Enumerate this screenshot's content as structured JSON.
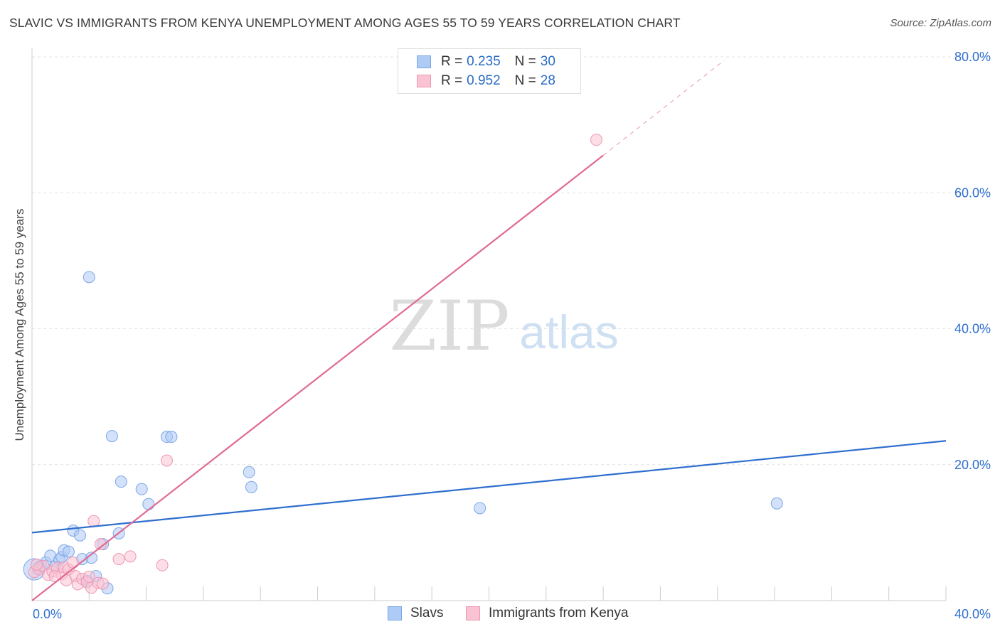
{
  "title": "SLAVIC VS IMMIGRANTS FROM KENYA UNEMPLOYMENT AMONG AGES 55 TO 59 YEARS CORRELATION CHART",
  "source": "Source: ZipAtlas.com",
  "watermark": {
    "zip": "ZIP",
    "atlas": "atlas"
  },
  "legend_stats": {
    "r_label": "R = ",
    "n_label": "N = ",
    "slavs": {
      "r": "0.235",
      "n": "30",
      "fill": "#aecbf5",
      "stroke": "#7aa6e6"
    },
    "kenya": {
      "r": "0.952",
      "n": "28",
      "fill": "#f9c3d3",
      "stroke": "#ee97b3"
    }
  },
  "chart_data": {
    "type": "scatter",
    "title": "SLAVIC VS IMMIGRANTS FROM KENYA UNEMPLOYMENT AMONG AGES 55 TO 59 YEARS CORRELATION CHART",
    "xlabel": "",
    "ylabel": "Unemployment Among Ages 55 to 59 years",
    "xlim": [
      0,
      40
    ],
    "ylim": [
      0,
      80
    ],
    "x_tick_labels": [
      "0.0%",
      "40.0%"
    ],
    "y_tick_labels": [
      {
        "value": 80,
        "label": "80.0%"
      },
      {
        "value": 60,
        "label": "60.0%"
      },
      {
        "value": 40,
        "label": "40.0%"
      },
      {
        "value": 20,
        "label": "20.0%"
      }
    ],
    "series": [
      {
        "name": "Slavs",
        "color": "#aecbf5",
        "stroke": "#7aa6e6",
        "line_color": "#2f6fcf",
        "trend": {
          "x0": 0,
          "y0": 10.0,
          "x1": 40,
          "y1": 23.5
        },
        "points": [
          {
            "x": 0.1,
            "y": 4.6,
            "big": true
          },
          {
            "x": 0.4,
            "y": 5.1
          },
          {
            "x": 0.6,
            "y": 5.6
          },
          {
            "x": 0.8,
            "y": 6.6
          },
          {
            "x": 1.0,
            "y": 5.0
          },
          {
            "x": 1.2,
            "y": 6.0
          },
          {
            "x": 1.3,
            "y": 6.4
          },
          {
            "x": 1.4,
            "y": 7.4
          },
          {
            "x": 1.6,
            "y": 7.2
          },
          {
            "x": 1.8,
            "y": 10.3
          },
          {
            "x": 2.1,
            "y": 9.6
          },
          {
            "x": 2.2,
            "y": 6.1
          },
          {
            "x": 2.5,
            "y": 47.6
          },
          {
            "x": 2.6,
            "y": 6.3
          },
          {
            "x": 2.8,
            "y": 3.6
          },
          {
            "x": 3.1,
            "y": 8.3
          },
          {
            "x": 3.3,
            "y": 1.8
          },
          {
            "x": 2.4,
            "y": 2.9
          },
          {
            "x": 3.5,
            "y": 24.2
          },
          {
            "x": 3.8,
            "y": 9.9
          },
          {
            "x": 3.9,
            "y": 17.5
          },
          {
            "x": 4.8,
            "y": 16.4
          },
          {
            "x": 5.1,
            "y": 14.2
          },
          {
            "x": 5.9,
            "y": 24.1
          },
          {
            "x": 6.1,
            "y": 24.1
          },
          {
            "x": 9.5,
            "y": 18.9
          },
          {
            "x": 9.6,
            "y": 16.7
          },
          {
            "x": 19.6,
            "y": 13.6
          },
          {
            "x": 32.6,
            "y": 14.3
          },
          {
            "x": 0.3,
            "y": 4.9
          }
        ]
      },
      {
        "name": "Immigrants from Kenya",
        "color": "#f9c3d3",
        "stroke": "#ee97b3",
        "line_color": "#e06a93",
        "trend": {
          "x0": 0,
          "y0": 0.0,
          "x1": 25.0,
          "y1": 65.5
        },
        "trend_dashed": {
          "x0": 25.0,
          "y0": 65.5,
          "x1": 30.3,
          "y1": 79.5
        },
        "points": [
          {
            "x": 0.1,
            "y": 4.2
          },
          {
            "x": 0.3,
            "y": 4.6
          },
          {
            "x": 0.5,
            "y": 5.1
          },
          {
            "x": 0.7,
            "y": 3.8
          },
          {
            "x": 0.9,
            "y": 4.3
          },
          {
            "x": 1.1,
            "y": 4.8
          },
          {
            "x": 1.3,
            "y": 3.9
          },
          {
            "x": 1.4,
            "y": 4.9
          },
          {
            "x": 1.5,
            "y": 3.0
          },
          {
            "x": 1.6,
            "y": 4.6
          },
          {
            "x": 1.8,
            "y": 5.6
          },
          {
            "x": 1.9,
            "y": 3.6
          },
          {
            "x": 2.0,
            "y": 2.4
          },
          {
            "x": 2.2,
            "y": 3.2
          },
          {
            "x": 2.4,
            "y": 2.7
          },
          {
            "x": 2.5,
            "y": 3.5
          },
          {
            "x": 2.6,
            "y": 1.9
          },
          {
            "x": 2.7,
            "y": 11.7
          },
          {
            "x": 2.9,
            "y": 2.6
          },
          {
            "x": 3.0,
            "y": 8.3
          },
          {
            "x": 3.1,
            "y": 2.5
          },
          {
            "x": 3.8,
            "y": 6.1
          },
          {
            "x": 4.3,
            "y": 6.5
          },
          {
            "x": 5.7,
            "y": 5.2
          },
          {
            "x": 5.9,
            "y": 20.6
          },
          {
            "x": 24.7,
            "y": 67.8
          },
          {
            "x": 0.2,
            "y": 5.3
          },
          {
            "x": 1.0,
            "y": 3.6
          }
        ]
      }
    ]
  },
  "bottom_legend": {
    "slavs": "Slavs",
    "kenya": "Immigrants from Kenya"
  }
}
